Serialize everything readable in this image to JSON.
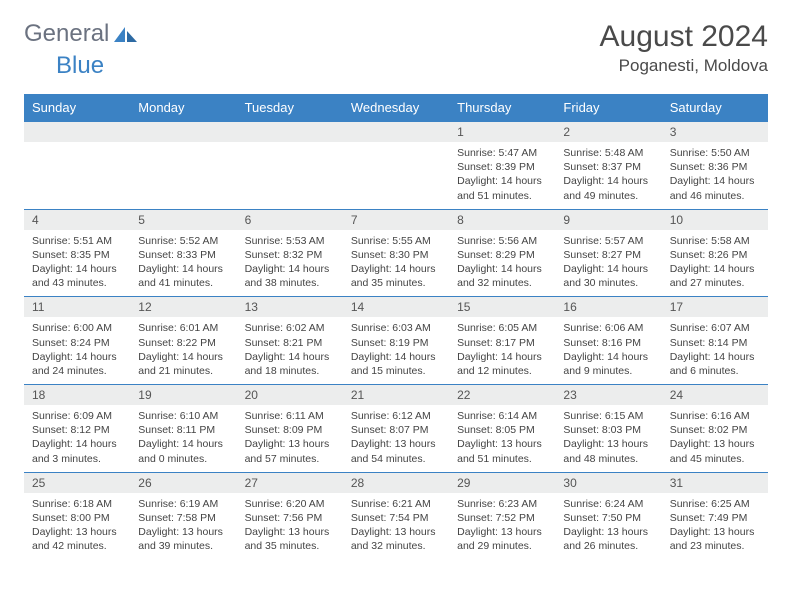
{
  "brand": {
    "part1": "General",
    "part2": "Blue"
  },
  "title": {
    "month": "August 2024",
    "location": "Poganesti, Moldova"
  },
  "colors": {
    "header_bg": "#3b82c4",
    "header_text": "#ffffff",
    "daynum_bg": "#eceded",
    "border": "#3b82c4",
    "text": "#444444",
    "brand_gray": "#6b7280",
    "brand_blue": "#3b82c4"
  },
  "weekdays": [
    "Sunday",
    "Monday",
    "Tuesday",
    "Wednesday",
    "Thursday",
    "Friday",
    "Saturday"
  ],
  "weeks": [
    [
      {
        "day": "",
        "lines": []
      },
      {
        "day": "",
        "lines": []
      },
      {
        "day": "",
        "lines": []
      },
      {
        "day": "",
        "lines": []
      },
      {
        "day": "1",
        "lines": [
          "Sunrise: 5:47 AM",
          "Sunset: 8:39 PM",
          "Daylight: 14 hours and 51 minutes."
        ]
      },
      {
        "day": "2",
        "lines": [
          "Sunrise: 5:48 AM",
          "Sunset: 8:37 PM",
          "Daylight: 14 hours and 49 minutes."
        ]
      },
      {
        "day": "3",
        "lines": [
          "Sunrise: 5:50 AM",
          "Sunset: 8:36 PM",
          "Daylight: 14 hours and 46 minutes."
        ]
      }
    ],
    [
      {
        "day": "4",
        "lines": [
          "Sunrise: 5:51 AM",
          "Sunset: 8:35 PM",
          "Daylight: 14 hours and 43 minutes."
        ]
      },
      {
        "day": "5",
        "lines": [
          "Sunrise: 5:52 AM",
          "Sunset: 8:33 PM",
          "Daylight: 14 hours and 41 minutes."
        ]
      },
      {
        "day": "6",
        "lines": [
          "Sunrise: 5:53 AM",
          "Sunset: 8:32 PM",
          "Daylight: 14 hours and 38 minutes."
        ]
      },
      {
        "day": "7",
        "lines": [
          "Sunrise: 5:55 AM",
          "Sunset: 8:30 PM",
          "Daylight: 14 hours and 35 minutes."
        ]
      },
      {
        "day": "8",
        "lines": [
          "Sunrise: 5:56 AM",
          "Sunset: 8:29 PM",
          "Daylight: 14 hours and 32 minutes."
        ]
      },
      {
        "day": "9",
        "lines": [
          "Sunrise: 5:57 AM",
          "Sunset: 8:27 PM",
          "Daylight: 14 hours and 30 minutes."
        ]
      },
      {
        "day": "10",
        "lines": [
          "Sunrise: 5:58 AM",
          "Sunset: 8:26 PM",
          "Daylight: 14 hours and 27 minutes."
        ]
      }
    ],
    [
      {
        "day": "11",
        "lines": [
          "Sunrise: 6:00 AM",
          "Sunset: 8:24 PM",
          "Daylight: 14 hours and 24 minutes."
        ]
      },
      {
        "day": "12",
        "lines": [
          "Sunrise: 6:01 AM",
          "Sunset: 8:22 PM",
          "Daylight: 14 hours and 21 minutes."
        ]
      },
      {
        "day": "13",
        "lines": [
          "Sunrise: 6:02 AM",
          "Sunset: 8:21 PM",
          "Daylight: 14 hours and 18 minutes."
        ]
      },
      {
        "day": "14",
        "lines": [
          "Sunrise: 6:03 AM",
          "Sunset: 8:19 PM",
          "Daylight: 14 hours and 15 minutes."
        ]
      },
      {
        "day": "15",
        "lines": [
          "Sunrise: 6:05 AM",
          "Sunset: 8:17 PM",
          "Daylight: 14 hours and 12 minutes."
        ]
      },
      {
        "day": "16",
        "lines": [
          "Sunrise: 6:06 AM",
          "Sunset: 8:16 PM",
          "Daylight: 14 hours and 9 minutes."
        ]
      },
      {
        "day": "17",
        "lines": [
          "Sunrise: 6:07 AM",
          "Sunset: 8:14 PM",
          "Daylight: 14 hours and 6 minutes."
        ]
      }
    ],
    [
      {
        "day": "18",
        "lines": [
          "Sunrise: 6:09 AM",
          "Sunset: 8:12 PM",
          "Daylight: 14 hours and 3 minutes."
        ]
      },
      {
        "day": "19",
        "lines": [
          "Sunrise: 6:10 AM",
          "Sunset: 8:11 PM",
          "Daylight: 14 hours and 0 minutes."
        ]
      },
      {
        "day": "20",
        "lines": [
          "Sunrise: 6:11 AM",
          "Sunset: 8:09 PM",
          "Daylight: 13 hours and 57 minutes."
        ]
      },
      {
        "day": "21",
        "lines": [
          "Sunrise: 6:12 AM",
          "Sunset: 8:07 PM",
          "Daylight: 13 hours and 54 minutes."
        ]
      },
      {
        "day": "22",
        "lines": [
          "Sunrise: 6:14 AM",
          "Sunset: 8:05 PM",
          "Daylight: 13 hours and 51 minutes."
        ]
      },
      {
        "day": "23",
        "lines": [
          "Sunrise: 6:15 AM",
          "Sunset: 8:03 PM",
          "Daylight: 13 hours and 48 minutes."
        ]
      },
      {
        "day": "24",
        "lines": [
          "Sunrise: 6:16 AM",
          "Sunset: 8:02 PM",
          "Daylight: 13 hours and 45 minutes."
        ]
      }
    ],
    [
      {
        "day": "25",
        "lines": [
          "Sunrise: 6:18 AM",
          "Sunset: 8:00 PM",
          "Daylight: 13 hours and 42 minutes."
        ]
      },
      {
        "day": "26",
        "lines": [
          "Sunrise: 6:19 AM",
          "Sunset: 7:58 PM",
          "Daylight: 13 hours and 39 minutes."
        ]
      },
      {
        "day": "27",
        "lines": [
          "Sunrise: 6:20 AM",
          "Sunset: 7:56 PM",
          "Daylight: 13 hours and 35 minutes."
        ]
      },
      {
        "day": "28",
        "lines": [
          "Sunrise: 6:21 AM",
          "Sunset: 7:54 PM",
          "Daylight: 13 hours and 32 minutes."
        ]
      },
      {
        "day": "29",
        "lines": [
          "Sunrise: 6:23 AM",
          "Sunset: 7:52 PM",
          "Daylight: 13 hours and 29 minutes."
        ]
      },
      {
        "day": "30",
        "lines": [
          "Sunrise: 6:24 AM",
          "Sunset: 7:50 PM",
          "Daylight: 13 hours and 26 minutes."
        ]
      },
      {
        "day": "31",
        "lines": [
          "Sunrise: 6:25 AM",
          "Sunset: 7:49 PM",
          "Daylight: 13 hours and 23 minutes."
        ]
      }
    ]
  ]
}
